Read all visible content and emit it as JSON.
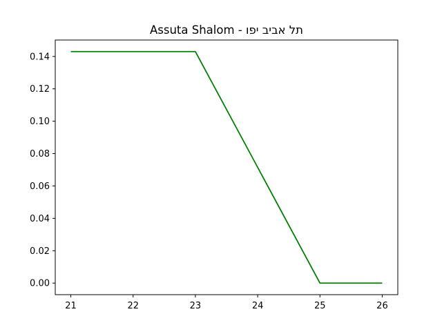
{
  "chart_data": {
    "type": "line",
    "title": "Assuta Shalom - תל אביב יפו",
    "xlabel": "",
    "ylabel": "",
    "x": [
      21,
      22,
      23,
      24,
      25,
      26
    ],
    "series": [
      {
        "values": [
          0.143,
          0.143,
          0.143,
          0.0715,
          0.0,
          0.0
        ],
        "color": "#008000"
      }
    ],
    "xlim": [
      20.75,
      26.25
    ],
    "ylim": [
      -0.00715,
      0.15015
    ],
    "xticks": [
      21,
      22,
      23,
      24,
      25,
      26
    ],
    "xtick_labels": [
      "21",
      "22",
      "23",
      "24",
      "25",
      "26"
    ],
    "yticks": [
      0.0,
      0.02,
      0.04,
      0.06,
      0.08,
      0.1,
      0.12,
      0.14
    ],
    "ytick_labels": [
      "0.00",
      "0.02",
      "0.04",
      "0.06",
      "0.08",
      "0.10",
      "0.12",
      "0.14"
    ],
    "grid": false,
    "legend": "none"
  }
}
